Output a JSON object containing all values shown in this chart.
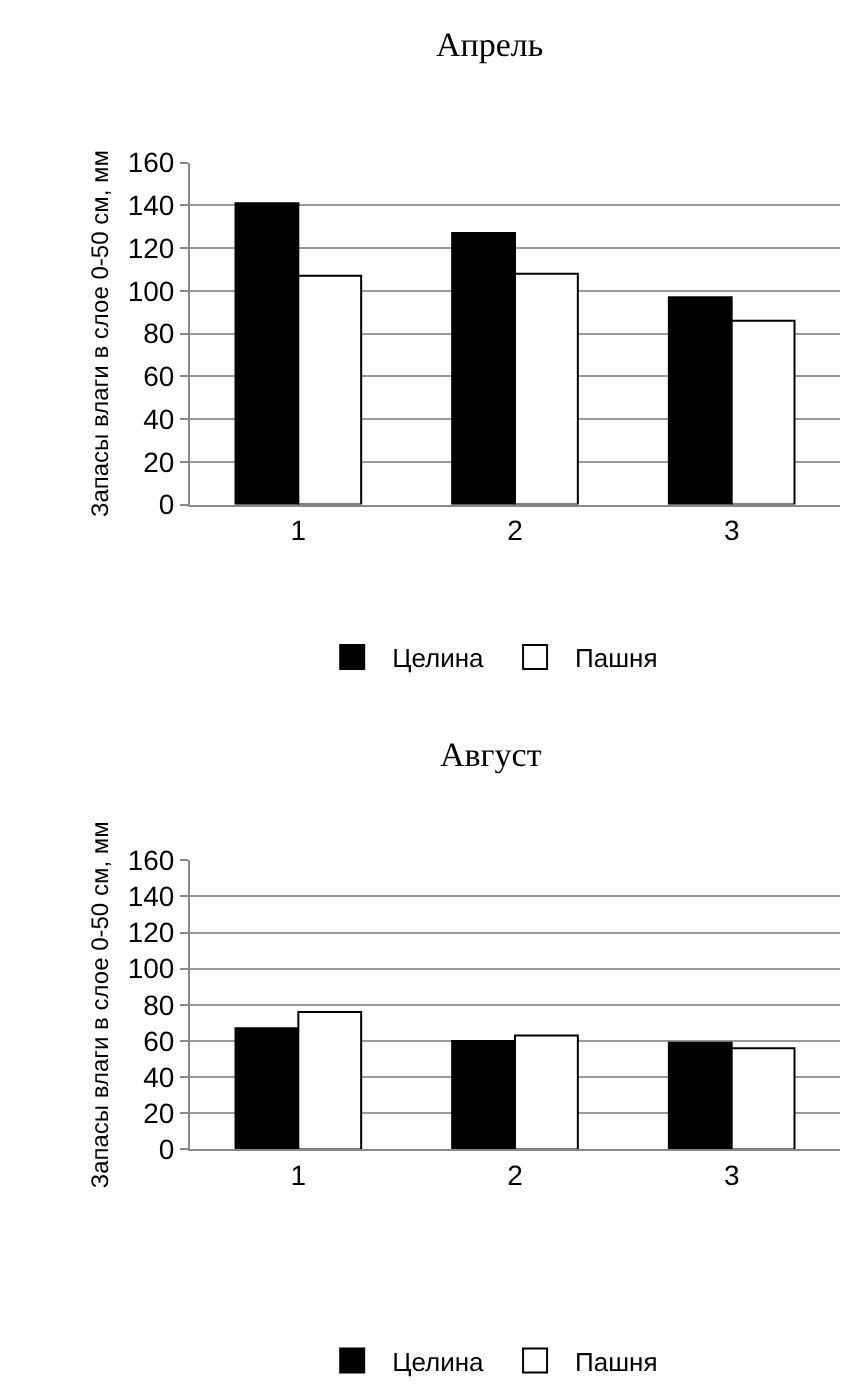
{
  "chart_data": [
    {
      "type": "bar",
      "title": "Апрель",
      "ylabel": "Запасы влаги в слое 0-50 см, мм",
      "categories": [
        "1",
        "2",
        "3"
      ],
      "series": [
        {
          "name": "Целина",
          "color": "#000000",
          "values": [
            141,
            127,
            97
          ]
        },
        {
          "name": "Пашня",
          "color": "#ffffff",
          "values": [
            107,
            108,
            86
          ]
        }
      ],
      "ylim": [
        0,
        160
      ],
      "yticks": [
        0,
        20,
        40,
        60,
        80,
        100,
        120,
        140,
        160
      ],
      "grid": "y",
      "legend": "bottom"
    },
    {
      "type": "bar",
      "title": "Август",
      "ylabel": "Запасы влаги в слое 0-50 см, мм",
      "categories": [
        "1",
        "2",
        "3"
      ],
      "series": [
        {
          "name": "Целина",
          "color": "#000000",
          "values": [
            67,
            60,
            59
          ]
        },
        {
          "name": "Пашня",
          "color": "#ffffff",
          "values": [
            76,
            63,
            56
          ]
        }
      ],
      "ylim": [
        0,
        160
      ],
      "yticks": [
        0,
        20,
        40,
        60,
        80,
        100,
        120,
        140,
        160
      ],
      "grid": "y",
      "legend": "bottom"
    }
  ]
}
